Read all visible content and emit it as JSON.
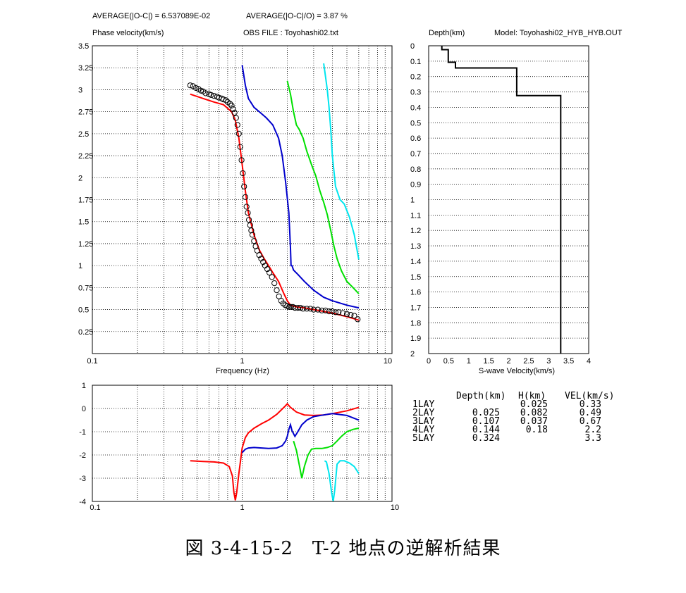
{
  "header": {
    "avg_abs": "AVERAGE(|O-C|) = 6.537089E-02",
    "avg_rel": "AVERAGE(|O-C|/O) = 3.87 %",
    "ylabel": "Phase velocity(km/s)",
    "obs_file": "OBS FILE : Toyohashi02.txt",
    "depth_label": "Depth(km)",
    "model": "Model: Toyohashi02_HYB_HYB.OUT"
  },
  "caption": "図 3-4-15-2　T-2 地点の逆解析結果",
  "table": {
    "headers": [
      "Depth(km)",
      "H(km)",
      "VEL(km/s)"
    ],
    "rows": [
      {
        "lay": "1LAY",
        "depth": "",
        "h": "0.025",
        "vel": "0.33"
      },
      {
        "lay": "2LAY",
        "depth": "0.025",
        "h": "0.082",
        "vel": "0.49"
      },
      {
        "lay": "3LAY",
        "depth": "0.107",
        "h": "0.037",
        "vel": "0.67"
      },
      {
        "lay": "4LAY",
        "depth": "0.144",
        "h": "0.18",
        "vel": "2.2"
      },
      {
        "lay": "5LAY",
        "depth": "0.324",
        "h": "",
        "vel": "3.3"
      }
    ]
  },
  "colors": {
    "observed": "#000000",
    "mode0": "#ff0000",
    "mode1": "#0000cc",
    "mode2": "#00e000",
    "mode3": "#00e5ee",
    "grid": "#000000"
  },
  "chart_data": [
    {
      "type": "line",
      "xlabel": "Frequency (Hz)",
      "ylabel": "Phase velocity(km/s)",
      "xscale": "log",
      "xlim": [
        0.1,
        10
      ],
      "ylim": [
        0,
        3.5
      ],
      "xticks": [
        "0.1",
        "1",
        "10"
      ],
      "yticks": [
        "0.25",
        "0.5",
        "0.75",
        "1",
        "1.25",
        "1.5",
        "1.75",
        "2",
        "2.25",
        "2.5",
        "2.75",
        "3",
        "3.25",
        "3.5"
      ],
      "observed": {
        "f": [
          0.45,
          0.47,
          0.49,
          0.51,
          0.53,
          0.55,
          0.57,
          0.6,
          0.62,
          0.65,
          0.68,
          0.7,
          0.73,
          0.75,
          0.78,
          0.8,
          0.83,
          0.85,
          0.87,
          0.89,
          0.91,
          0.93,
          0.95,
          0.97,
          0.99,
          1.01,
          1.03,
          1.05,
          1.07,
          1.09,
          1.11,
          1.13,
          1.15,
          1.17,
          1.2,
          1.23,
          1.26,
          1.3,
          1.34,
          1.38,
          1.42,
          1.47,
          1.52,
          1.58,
          1.64,
          1.7,
          1.76,
          1.82,
          1.88,
          1.94,
          2.0,
          2.06,
          2.12,
          2.18,
          2.25,
          2.35,
          2.45,
          2.55,
          2.7,
          2.85,
          3.0,
          3.2,
          3.4,
          3.6,
          3.8,
          4.0,
          4.2,
          4.4,
          4.7,
          5.0,
          5.3,
          5.6,
          5.9
        ],
        "v": [
          3.05,
          3.04,
          3.02,
          3.01,
          2.99,
          2.98,
          2.96,
          2.95,
          2.94,
          2.93,
          2.92,
          2.91,
          2.9,
          2.89,
          2.88,
          2.86,
          2.84,
          2.82,
          2.78,
          2.74,
          2.68,
          2.6,
          2.5,
          2.35,
          2.2,
          2.05,
          1.9,
          1.78,
          1.67,
          1.6,
          1.52,
          1.46,
          1.4,
          1.35,
          1.28,
          1.22,
          1.17,
          1.12,
          1.08,
          1.04,
          1.0,
          0.96,
          0.92,
          0.87,
          0.8,
          0.72,
          0.65,
          0.6,
          0.57,
          0.55,
          0.54,
          0.53,
          0.53,
          0.53,
          0.52,
          0.52,
          0.52,
          0.51,
          0.51,
          0.51,
          0.5,
          0.5,
          0.49,
          0.49,
          0.48,
          0.48,
          0.47,
          0.47,
          0.46,
          0.45,
          0.44,
          0.43,
          0.39
        ]
      },
      "series": [
        {
          "name": "mode0",
          "f": [
            0.45,
            0.55,
            0.65,
            0.75,
            0.85,
            0.9,
            0.95,
            1.0,
            1.05,
            1.1,
            1.2,
            1.3,
            1.4,
            1.5,
            1.6,
            1.75,
            1.9,
            2.0,
            2.1,
            2.3,
            2.6,
            3.0,
            3.5,
            4.0,
            5.0,
            6.0
          ],
          "v": [
            2.95,
            2.9,
            2.86,
            2.83,
            2.75,
            2.65,
            2.45,
            2.15,
            1.85,
            1.6,
            1.35,
            1.18,
            1.08,
            1.0,
            0.92,
            0.82,
            0.68,
            0.6,
            0.55,
            0.53,
            0.52,
            0.5,
            0.48,
            0.46,
            0.42,
            0.38
          ]
        },
        {
          "name": "mode1",
          "f": [
            1.0,
            1.05,
            1.1,
            1.2,
            1.3,
            1.45,
            1.6,
            1.75,
            1.85,
            1.95,
            2.05,
            2.1,
            2.12,
            2.15,
            2.2,
            2.35,
            2.6,
            3.0,
            3.5,
            4.0,
            5.0,
            6.0
          ],
          "v": [
            3.28,
            3.05,
            2.9,
            2.8,
            2.75,
            2.68,
            2.6,
            2.45,
            2.25,
            1.95,
            1.6,
            1.2,
            1.0,
            1.0,
            0.95,
            0.9,
            0.82,
            0.72,
            0.64,
            0.6,
            0.55,
            0.52
          ]
        },
        {
          "name": "mode2",
          "f": [
            2.0,
            2.1,
            2.2,
            2.3,
            2.4,
            2.55,
            2.7,
            2.9,
            3.1,
            3.3,
            3.5,
            3.7,
            3.9,
            4.1,
            4.3,
            4.6,
            5.0,
            5.5,
            6.0
          ],
          "v": [
            3.1,
            2.95,
            2.75,
            2.6,
            2.55,
            2.45,
            2.3,
            2.15,
            2.02,
            1.85,
            1.72,
            1.58,
            1.4,
            1.22,
            1.08,
            0.94,
            0.82,
            0.75,
            0.68
          ]
        },
        {
          "name": "mode3",
          "f": [
            3.5,
            3.6,
            3.7,
            3.8,
            3.9,
            4.0,
            4.2,
            4.5,
            4.8,
            5.2,
            5.6,
            6.0
          ],
          "v": [
            3.3,
            3.15,
            3.0,
            2.8,
            2.55,
            2.25,
            1.9,
            1.75,
            1.7,
            1.55,
            1.35,
            1.07
          ]
        }
      ]
    },
    {
      "type": "line",
      "xlabel": "S-wave Velocity(km/s)",
      "ylabel": "Depth(km)",
      "xlim": [
        0,
        4
      ],
      "ylim": [
        0,
        2
      ],
      "xticks": [
        "0",
        "0.5",
        "1",
        "1.5",
        "2",
        "2.5",
        "3",
        "3.5",
        "4"
      ],
      "yticks": [
        "0",
        "0.1",
        "0.2",
        "0.3",
        "0.4",
        "0.5",
        "0.6",
        "0.7",
        "0.8",
        "0.9",
        "1",
        "1.1",
        "1.2",
        "1.3",
        "1.4",
        "1.5",
        "1.6",
        "1.7",
        "1.8",
        "1.9",
        "2"
      ],
      "profile": {
        "depth": [
          0,
          0.025,
          0.025,
          0.107,
          0.107,
          0.144,
          0.144,
          0.324,
          0.324,
          2.0
        ],
        "vel": [
          0.33,
          0.33,
          0.49,
          0.49,
          0.67,
          0.67,
          2.2,
          2.2,
          3.3,
          3.3
        ]
      }
    },
    {
      "type": "line",
      "xscale": "log",
      "xlim": [
        0.1,
        10
      ],
      "ylim": [
        -4,
        1
      ],
      "xticks": [
        "0.1",
        "1",
        "10"
      ],
      "yticks": [
        "1",
        "0",
        "-1",
        "-2",
        "-3",
        "-4"
      ],
      "series": [
        {
          "name": "mode0",
          "f": [
            0.45,
            0.55,
            0.65,
            0.75,
            0.82,
            0.86,
            0.88,
            0.9,
            0.92,
            0.95,
            1.0,
            1.05,
            1.1,
            1.2,
            1.35,
            1.5,
            1.7,
            1.9,
            2.0,
            2.1,
            2.3,
            2.6,
            3.0,
            3.5,
            4.0,
            5.0,
            6.0
          ],
          "v": [
            -2.25,
            -2.28,
            -2.3,
            -2.35,
            -2.5,
            -2.9,
            -3.6,
            -3.95,
            -3.6,
            -2.8,
            -1.7,
            -1.25,
            -1.05,
            -0.85,
            -0.65,
            -0.5,
            -0.25,
            0.05,
            0.2,
            0.05,
            -0.15,
            -0.28,
            -0.3,
            -0.28,
            -0.22,
            -0.1,
            0.05
          ]
        },
        {
          "name": "mode1",
          "f": [
            1.0,
            1.05,
            1.1,
            1.2,
            1.35,
            1.5,
            1.7,
            1.85,
            1.95,
            2.0,
            2.05,
            2.1,
            2.15,
            2.25,
            2.35,
            2.5,
            2.7,
            3.0,
            3.5,
            4.0,
            5.0,
            6.0
          ],
          "v": [
            -1.9,
            -1.75,
            -1.7,
            -1.68,
            -1.7,
            -1.72,
            -1.7,
            -1.6,
            -1.4,
            -1.2,
            -0.9,
            -0.7,
            -0.95,
            -1.2,
            -1.0,
            -0.7,
            -0.5,
            -0.35,
            -0.28,
            -0.22,
            -0.3,
            -0.5
          ]
        },
        {
          "name": "mode2",
          "f": [
            2.2,
            2.3,
            2.4,
            2.5,
            2.6,
            2.75,
            2.9,
            3.1,
            3.4,
            3.7,
            4.0,
            4.3,
            4.6,
            5.0,
            5.5,
            6.0
          ],
          "v": [
            -1.4,
            -1.8,
            -2.4,
            -3.0,
            -2.5,
            -2.0,
            -1.75,
            -1.72,
            -1.72,
            -1.68,
            -1.6,
            -1.4,
            -1.2,
            -1.0,
            -0.9,
            -0.85
          ]
        },
        {
          "name": "mode3",
          "f": [
            3.55,
            3.65,
            3.8,
            3.95,
            4.05,
            4.15,
            4.3,
            4.5,
            4.8,
            5.2,
            5.6,
            6.0
          ],
          "v": [
            -2.25,
            -2.3,
            -2.8,
            -3.6,
            -4.0,
            -3.5,
            -2.4,
            -2.25,
            -2.25,
            -2.35,
            -2.5,
            -2.8
          ]
        }
      ]
    }
  ]
}
